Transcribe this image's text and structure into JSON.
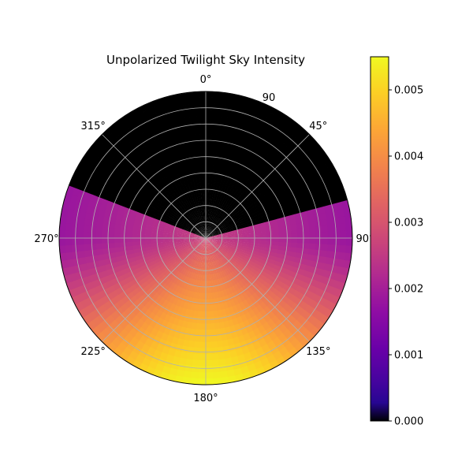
{
  "chart_data": {
    "type": "heatmap",
    "projection": "polar",
    "title": "Unpolarized Twilight Sky Intensity",
    "theta_zero": "top",
    "theta_direction": "clockwise",
    "theta_tick_labels": [
      {
        "deg": 0,
        "label": "0°"
      },
      {
        "deg": 45,
        "label": "45°"
      },
      {
        "deg": 90,
        "label": "90°"
      },
      {
        "deg": 135,
        "label": "135°"
      },
      {
        "deg": 180,
        "label": "180°"
      },
      {
        "deg": 225,
        "label": "225°"
      },
      {
        "deg": 270,
        "label": "270°"
      },
      {
        "deg": 315,
        "label": "315°"
      }
    ],
    "radial_tick_label": "90",
    "radial_gridlines": 9,
    "rlim": [
      0,
      90
    ],
    "grid": true,
    "colormap": "plasma",
    "colorbar": {
      "placement": "right",
      "range": [
        0,
        0.0055
      ],
      "ticks": [
        0.0,
        0.001,
        0.002,
        0.003,
        0.004,
        0.005
      ],
      "tick_labels": [
        "0.000",
        "0.001",
        "0.002",
        "0.003",
        "0.004",
        "0.005"
      ]
    },
    "intensity_profile": {
      "dark_sector_azimuth": [
        290,
        75
      ],
      "dark_value": 0.0,
      "peak_azimuth": 180,
      "peak_value": 0.0055,
      "horizon_value_at_90_270": 0.0018,
      "center_value": 0.0027
    }
  }
}
